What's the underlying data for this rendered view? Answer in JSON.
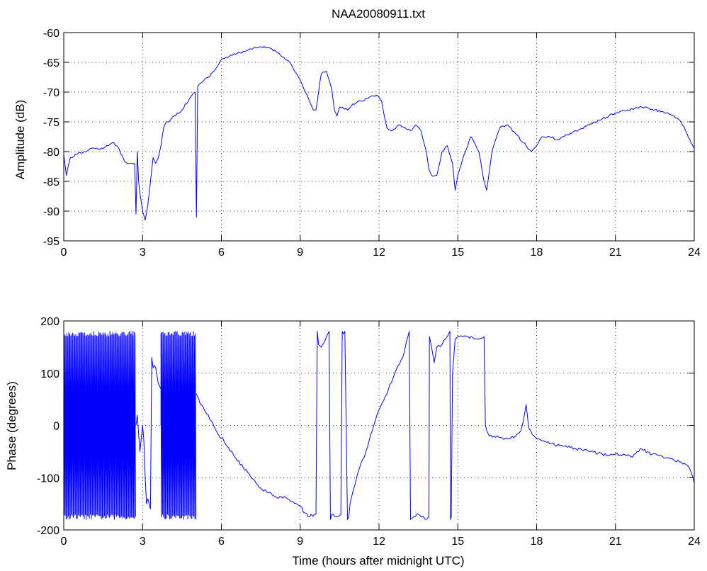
{
  "chart_data": [
    {
      "type": "line",
      "title": "NAA20080911.txt",
      "xlabel": "",
      "ylabel": "Amplitude (dB)",
      "xlim": [
        0,
        24
      ],
      "ylim": [
        -95,
        -60
      ],
      "xticks": [
        "0",
        "3",
        "6",
        "9",
        "12",
        "15",
        "18",
        "21",
        "24"
      ],
      "yticks": [
        "-60",
        "-65",
        "-70",
        "-75",
        "-80",
        "-85",
        "-90",
        "-95"
      ],
      "grid": true,
      "color": "#0000ff",
      "series": [
        {
          "x": [
            0,
            0.1,
            0.25,
            0.5,
            0.8,
            1.0,
            1.2,
            1.5,
            1.7,
            1.9,
            2.1,
            2.3,
            2.5,
            2.7,
            2.75,
            2.8,
            2.85,
            2.9,
            3.0,
            3.1,
            3.2,
            3.3,
            3.4,
            3.5,
            3.6,
            3.7,
            3.8,
            3.9,
            4.0,
            4.2,
            4.5,
            4.8,
            5.0,
            5.05,
            5.1,
            5.2,
            5.5,
            5.8,
            6.0,
            6.3,
            6.6,
            7.0,
            7.4,
            7.8,
            8.2,
            8.6,
            9.0,
            9.2,
            9.4,
            9.5,
            9.6,
            9.8,
            10.0,
            10.2,
            10.3,
            10.4,
            10.5,
            10.8,
            11.0,
            11.3,
            11.6,
            11.9,
            12.1,
            12.2,
            12.3,
            12.5,
            12.8,
            13.0,
            13.2,
            13.4,
            13.6,
            13.8,
            13.9,
            14.0,
            14.2,
            14.4,
            14.6,
            14.8,
            14.9,
            15.0,
            15.2,
            15.5,
            15.8,
            16.0,
            16.1,
            16.3,
            16.6,
            16.9,
            17.2,
            17.5,
            17.8,
            18.0,
            18.2,
            18.5,
            18.8,
            19.0,
            19.5,
            20.0,
            20.5,
            21.0,
            21.5,
            22.0,
            22.5,
            23.0,
            23.5,
            24.0
          ],
          "y": [
            -80.5,
            -84,
            -81,
            -80.5,
            -80,
            -79.5,
            -79.5,
            -79.5,
            -79,
            -78.5,
            -79.5,
            -81.5,
            -82,
            -82,
            -90.5,
            -80,
            -85,
            -87,
            -90,
            -91.5,
            -89,
            -85,
            -81,
            -82,
            -81,
            -79,
            -76,
            -75,
            -75,
            -74,
            -73,
            -71,
            -70,
            -91,
            -69,
            -68.5,
            -67.5,
            -66,
            -64.5,
            -64,
            -63.5,
            -63,
            -62.5,
            -62.5,
            -63.5,
            -65,
            -68,
            -70,
            -72,
            -73,
            -73,
            -67,
            -66.5,
            -69.5,
            -73,
            -74,
            -72.5,
            -73,
            -72,
            -71.5,
            -71,
            -70.5,
            -71.5,
            -74,
            -76,
            -76.5,
            -75.5,
            -76,
            -76.5,
            -75.5,
            -76.5,
            -80,
            -83,
            -84,
            -84,
            -80,
            -79,
            -82,
            -86.5,
            -84,
            -81,
            -77.5,
            -80,
            -85,
            -86.5,
            -80,
            -76,
            -75.5,
            -77,
            -78.5,
            -80,
            -79,
            -77.5,
            -77.5,
            -78,
            -77.5,
            -76.5,
            -75.5,
            -74.5,
            -73.5,
            -73,
            -72.5,
            -73,
            -73.5,
            -75,
            -79.5
          ]
        }
      ]
    },
    {
      "type": "line",
      "title": "",
      "xlabel": "Time (hours after midnight UTC)",
      "ylabel": "Phase (degrees)",
      "xlim": [
        0,
        24
      ],
      "ylim": [
        -200,
        200
      ],
      "xticks": [
        "0",
        "3",
        "6",
        "9",
        "12",
        "15",
        "18",
        "21",
        "24"
      ],
      "yticks": [
        "200",
        "100",
        "0",
        "-100",
        "-200"
      ],
      "grid": true,
      "color": "#0000ff",
      "series": [
        {
          "x": [
            2.75,
            2.8,
            2.9,
            3.0,
            3.05,
            3.1,
            3.15,
            3.2,
            3.3,
            3.35,
            3.4,
            3.45,
            3.5,
            3.6,
            3.7,
            5.05,
            5.2,
            5.5,
            5.8,
            6.1,
            6.5,
            7.0,
            7.5,
            8.0,
            8.5,
            9.0,
            9.3,
            9.6,
            9.65,
            9.7,
            9.8,
            10.0,
            10.1,
            10.15,
            10.2,
            10.25,
            10.4,
            10.55,
            10.6,
            10.65,
            10.7,
            10.8,
            10.85,
            10.9,
            11.2,
            11.5,
            11.8,
            12.0,
            12.3,
            12.6,
            12.9,
            13.1,
            13.15,
            13.2,
            13.5,
            13.8,
            13.9,
            13.92,
            14.0,
            14.1,
            14.2,
            14.4,
            14.6,
            14.7,
            14.72,
            14.75,
            14.8,
            14.9,
            15.0,
            15.2,
            15.5,
            15.8,
            16.0,
            16.05,
            16.1,
            16.2,
            16.5,
            16.8,
            17.0,
            17.2,
            17.4,
            17.5,
            17.6,
            17.7,
            17.9,
            18.2,
            18.5,
            19.0,
            19.5,
            20.0,
            20.5,
            21.0,
            21.3,
            21.6,
            22.0,
            22.4,
            22.8,
            23.2,
            23.5,
            23.8,
            24.0
          ],
          "y": [
            0,
            20,
            -50,
            0,
            -30,
            -100,
            -150,
            -140,
            -160,
            130,
            110,
            115,
            110,
            80,
            70,
            60,
            40,
            20,
            -10,
            -30,
            -60,
            -90,
            -120,
            -135,
            -140,
            -155,
            -175,
            -170,
            180,
            155,
            150,
            170,
            180,
            -180,
            -170,
            -170,
            -175,
            -170,
            180,
            175,
            180,
            -180,
            -175,
            -150,
            -90,
            -50,
            0,
            30,
            60,
            100,
            130,
            170,
            180,
            -180,
            -170,
            -180,
            -175,
            170,
            150,
            120,
            150,
            155,
            170,
            180,
            -180,
            -175,
            100,
            165,
            170,
            170,
            170,
            165,
            170,
            0,
            -10,
            -20,
            -20,
            -25,
            -25,
            -20,
            -10,
            10,
            40,
            -5,
            -20,
            -30,
            -35,
            -40,
            -45,
            -50,
            -55,
            -55,
            -55,
            -60,
            -45,
            -55,
            -60,
            -65,
            -70,
            -80,
            -110
          ]
        }
      ],
      "dense_oscillation_segments": [
        {
          "x_range": [
            0,
            2.75
          ],
          "y_range": [
            -180,
            180
          ]
        },
        {
          "x_range": [
            3.7,
            5.05
          ],
          "y_range": [
            -180,
            180
          ]
        }
      ]
    }
  ]
}
